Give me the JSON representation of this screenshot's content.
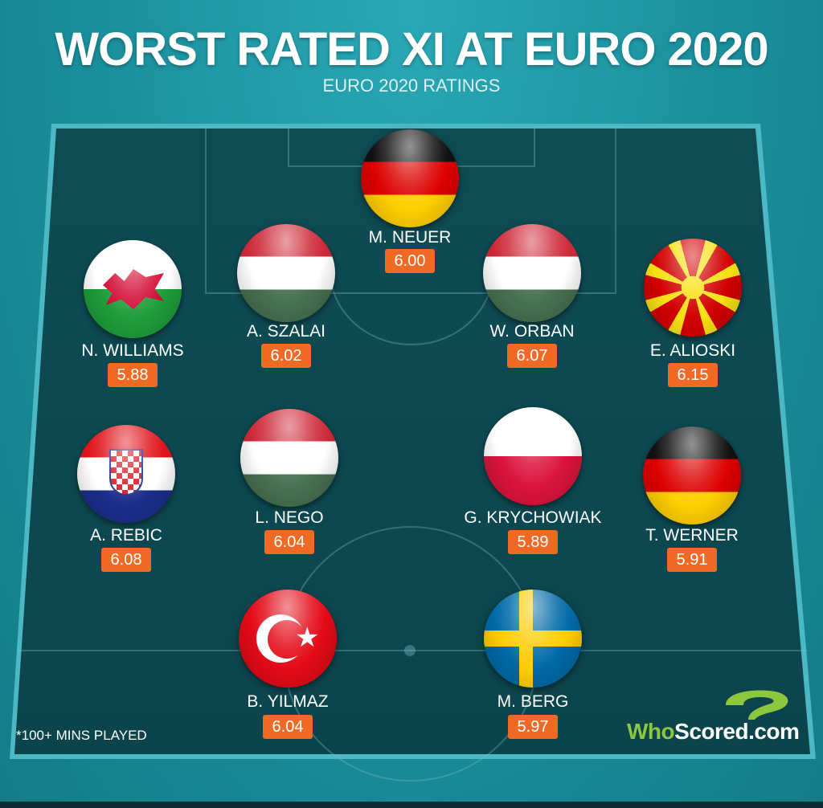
{
  "title": "WORST RATED XI AT EURO 2020",
  "subtitle": "EURO 2020 RATINGS",
  "footnote": "*100+ MINS PLAYED",
  "logo": {
    "part1": "Who",
    "part2": "Scored",
    "part3": ".com"
  },
  "colors": {
    "badge": "#f06a25",
    "pitch": "#0f4d55",
    "background": "#1a8f9c",
    "logo_green": "#8dc63f"
  },
  "players": [
    {
      "name": "M. NEUER",
      "rating": "6.00",
      "flag": "germany"
    },
    {
      "name": "A. SZALAI",
      "rating": "6.02",
      "flag": "hungary"
    },
    {
      "name": "W. ORBAN",
      "rating": "6.07",
      "flag": "hungary"
    },
    {
      "name": "N. WILLIAMS",
      "rating": "5.88",
      "flag": "wales"
    },
    {
      "name": "E. ALIOSKI",
      "rating": "6.15",
      "flag": "north-macedonia"
    },
    {
      "name": "A. REBIC",
      "rating": "6.08",
      "flag": "croatia"
    },
    {
      "name": "L. NEGO",
      "rating": "6.04",
      "flag": "hungary"
    },
    {
      "name": "G. KRYCHOWIAK",
      "rating": "5.89",
      "flag": "poland"
    },
    {
      "name": "T. WERNER",
      "rating": "5.91",
      "flag": "germany"
    },
    {
      "name": "B. YILMAZ",
      "rating": "6.04",
      "flag": "turkey"
    },
    {
      "name": "M. BERG",
      "rating": "5.97",
      "flag": "sweden"
    }
  ]
}
